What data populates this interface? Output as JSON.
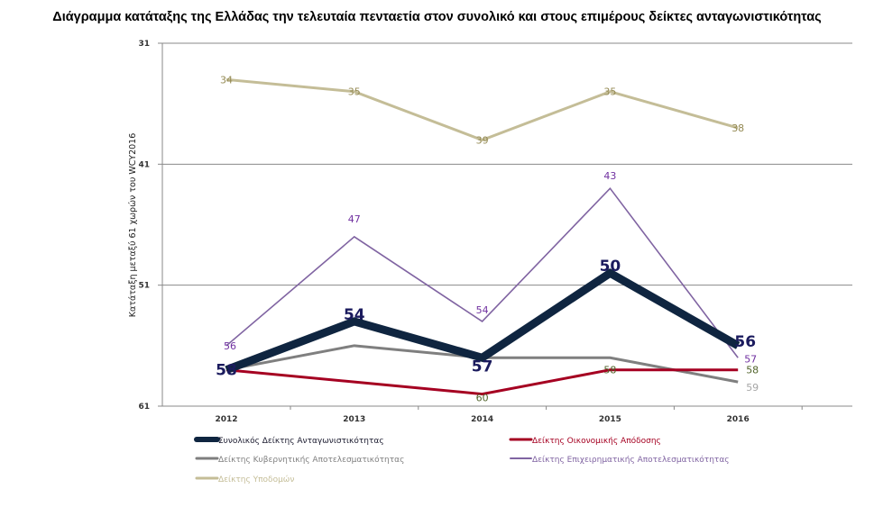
{
  "chart_data": {
    "type": "line",
    "title": "Διάγραμμα κατάταξης της Ελλάδας την τελευταία πενταετία στον συνολικό και στους επιμέρους δείκτες ανταγωνιστικότητας",
    "ylabel": "Κατάταξη μεταξύ 61 χωρών του WCY2016",
    "xlabel": "",
    "categories": [
      "2012",
      "2013",
      "2014",
      "2015",
      "2016"
    ],
    "ylim": [
      31,
      61
    ],
    "y_inverted": true,
    "yticks": [
      "31",
      "41",
      "51",
      "61"
    ],
    "grid": true,
    "legend_position": "bottom",
    "series": [
      {
        "name": "Συνολικός Δείκτης Ανταγωνιστικότητας",
        "values": [
          58,
          54,
          57,
          50,
          56
        ],
        "color": "#0f2540",
        "label_color": "#1b1b5e",
        "labels_shown": [
          true,
          true,
          true,
          true,
          true
        ]
      },
      {
        "name": "Δείκτης Οικονομικής Απόδοσης",
        "values": [
          58,
          59,
          60,
          58,
          58
        ],
        "color": "#a50021",
        "label_color": "#4f6228",
        "labels_shown": [
          false,
          false,
          true,
          true,
          true
        ]
      },
      {
        "name": "Δείκτης Κυβερνητικής Αποτελεσματικότητας",
        "values": [
          58,
          56,
          57,
          57,
          59
        ],
        "color": "#7f7f7f",
        "label_color": "#a6a6a6",
        "labels_shown": [
          false,
          false,
          false,
          false,
          true
        ]
      },
      {
        "name": "Δείκτης Επιχειρηματικής Αποτελεσματικότητας",
        "values": [
          56,
          47,
          54,
          43,
          57
        ],
        "color": "#8064a2",
        "label_color": "#7030a0",
        "labels_shown": [
          true,
          true,
          true,
          true,
          true
        ]
      },
      {
        "name": "Δείκτης Υποδομών",
        "values": [
          34,
          35,
          39,
          35,
          38
        ],
        "color": "#c4bd97",
        "label_color": "#948a54",
        "labels_shown": [
          true,
          true,
          true,
          true,
          true
        ]
      }
    ]
  }
}
